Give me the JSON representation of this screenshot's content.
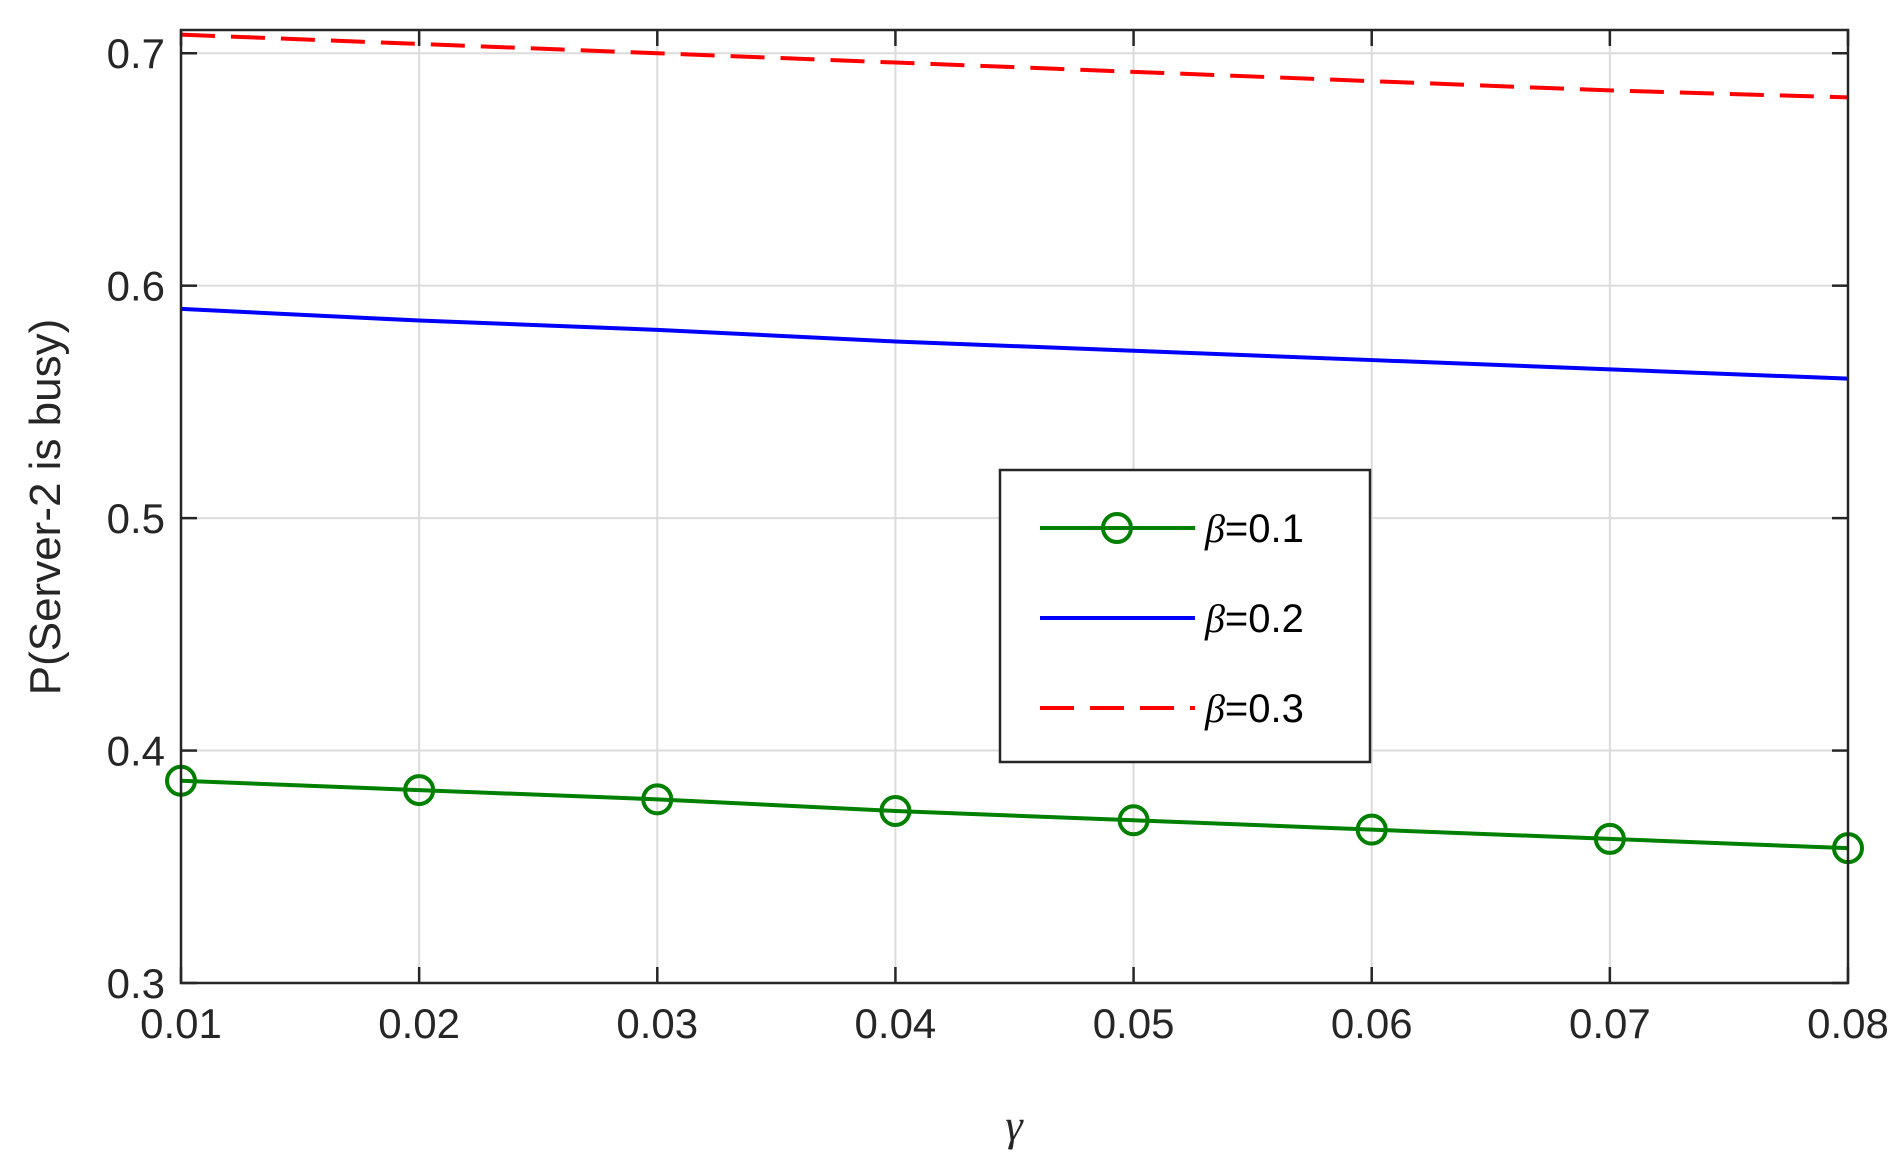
{
  "chart_data": {
    "type": "line",
    "xlabel": "γ",
    "ylabel": "P(Server-2 is busy)",
    "xlim": [
      0.01,
      0.08
    ],
    "ylim": [
      0.3,
      0.71
    ],
    "xticks": [
      0.01,
      0.02,
      0.03,
      0.04,
      0.05,
      0.06,
      0.07,
      0.08
    ],
    "xtick_labels": [
      "0.01",
      "0.02",
      "0.03",
      "0.04",
      "0.05",
      "0.06",
      "0.07",
      "0.08"
    ],
    "yticks": [
      0.3,
      0.4,
      0.5,
      0.6,
      0.7
    ],
    "ytick_labels": [
      "0.3",
      "0.4",
      "0.5",
      "0.6",
      "0.7"
    ],
    "grid": true,
    "legend_position": "center-right",
    "x": [
      0.01,
      0.02,
      0.03,
      0.04,
      0.05,
      0.06,
      0.07,
      0.08
    ],
    "series": [
      {
        "name": "β=0.1",
        "legend_symbol": "β",
        "legend_value": "=0.1",
        "color": "#008000",
        "line_style": "solid",
        "marker": "circle",
        "values": [
          0.387,
          0.383,
          0.379,
          0.374,
          0.37,
          0.366,
          0.362,
          0.358
        ]
      },
      {
        "name": "β=0.2",
        "legend_symbol": "β",
        "legend_value": "=0.2",
        "color": "#0000ff",
        "line_style": "solid",
        "marker": "none",
        "values": [
          0.59,
          0.585,
          0.581,
          0.576,
          0.572,
          0.568,
          0.564,
          0.56
        ]
      },
      {
        "name": "β=0.3",
        "legend_symbol": "β",
        "legend_value": "=0.3",
        "color": "#ff0000",
        "line_style": "dashed",
        "marker": "none",
        "values": [
          0.708,
          0.704,
          0.7,
          0.696,
          0.692,
          0.688,
          0.684,
          0.681
        ]
      }
    ]
  }
}
